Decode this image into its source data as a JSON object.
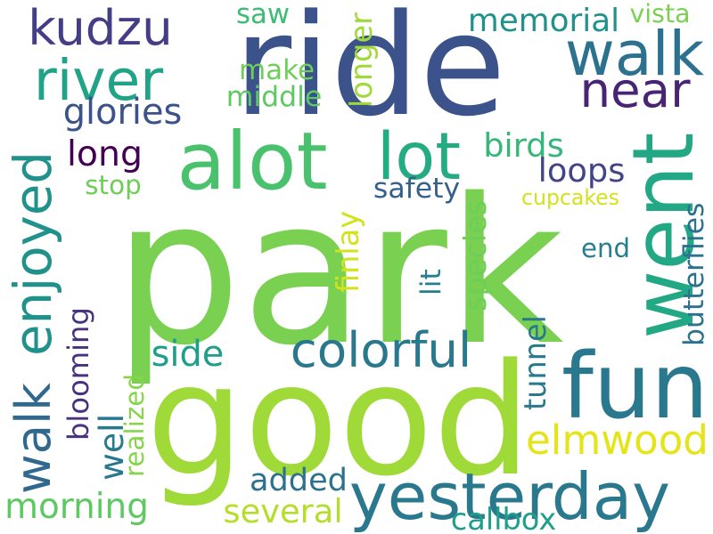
{
  "words": [
    {
      "id": "park",
      "text": "park",
      "color": "#7ad151",
      "orient": "h"
    },
    {
      "id": "ride",
      "text": "ride",
      "color": "#3b528b",
      "orient": "h"
    },
    {
      "id": "good",
      "text": "good",
      "color": "#a0da39",
      "orient": "h"
    },
    {
      "id": "alot",
      "text": "alot",
      "color": "#4ac16d",
      "orient": "h"
    },
    {
      "id": "went",
      "text": "went",
      "color": "#22a884",
      "orient": "v"
    },
    {
      "id": "fun",
      "text": "fun",
      "color": "#2a788e",
      "orient": "h"
    },
    {
      "id": "yesterday",
      "text": "yesterday",
      "color": "#2a788e",
      "orient": "h"
    },
    {
      "id": "walk",
      "text": "walk",
      "color": "#2c728e",
      "orient": "h"
    },
    {
      "id": "lot",
      "text": "lot",
      "color": "#25ab82",
      "orient": "h"
    },
    {
      "id": "river",
      "text": "river",
      "color": "#20a386",
      "orient": "h"
    },
    {
      "id": "near",
      "text": "near",
      "color": "#482475",
      "orient": "h"
    },
    {
      "id": "kudzu",
      "text": "kudzu",
      "color": "#433e85",
      "orient": "h"
    },
    {
      "id": "walk2",
      "text": "walk",
      "color": "#31688e",
      "orient": "v"
    },
    {
      "id": "enjoyed",
      "text": "enjoyed",
      "color": "#21918c",
      "orient": "v"
    },
    {
      "id": "colorful",
      "text": "colorful",
      "color": "#2a788e",
      "orient": "h"
    },
    {
      "id": "elmwood",
      "text": "elmwood",
      "color": "#e5e419",
      "orient": "h"
    },
    {
      "id": "morning",
      "text": "morning",
      "color": "#5ec962",
      "orient": "h"
    },
    {
      "id": "memorial",
      "text": "memorial",
      "color": "#21918c",
      "orient": "h"
    },
    {
      "id": "glories",
      "text": "glories",
      "color": "#3b528b",
      "orient": "h"
    },
    {
      "id": "birds",
      "text": "birds",
      "color": "#35b779",
      "orient": "h"
    },
    {
      "id": "loops",
      "text": "loops",
      "color": "#414487",
      "orient": "h"
    },
    {
      "id": "long",
      "text": "long",
      "color": "#440154",
      "orient": "h"
    },
    {
      "id": "butterflies",
      "text": "butterflies",
      "color": "#2c728e",
      "orient": "v"
    },
    {
      "id": "tunnel",
      "text": "tunnel",
      "color": "#2a788e",
      "orient": "v"
    },
    {
      "id": "species",
      "text": "species",
      "color": "#6ece58",
      "orient": "v"
    },
    {
      "id": "blooming",
      "text": "blooming",
      "color": "#46327e",
      "orient": "v"
    },
    {
      "id": "side",
      "text": "side",
      "color": "#1f9e89",
      "orient": "h"
    },
    {
      "id": "added",
      "text": "added",
      "color": "#2c728e",
      "orient": "h"
    },
    {
      "id": "several",
      "text": "several",
      "color": "#b5de2b",
      "orient": "h"
    },
    {
      "id": "callbox",
      "text": "callbox",
      "color": "#1f9e89",
      "orient": "h"
    },
    {
      "id": "longer",
      "text": "longer",
      "color": "#a0da39",
      "orient": "v"
    },
    {
      "id": "finlay",
      "text": "finlay",
      "color": "#d2e21b",
      "orient": "v"
    },
    {
      "id": "lit",
      "text": "lit",
      "color": "#277f8e",
      "orient": "v"
    },
    {
      "id": "well",
      "text": "well",
      "color": "#2a788e",
      "orient": "v"
    },
    {
      "id": "realized",
      "text": "realized",
      "color": "#86d549",
      "orient": "v"
    },
    {
      "id": "make",
      "text": "make",
      "color": "#6ece58",
      "orient": "h"
    },
    {
      "id": "middle",
      "text": "middle",
      "color": "#5ec962",
      "orient": "h"
    },
    {
      "id": "saw",
      "text": "saw",
      "color": "#3dbc74",
      "orient": "h"
    },
    {
      "id": "safety",
      "text": "safety",
      "color": "#355f8d",
      "orient": "h"
    },
    {
      "id": "stop",
      "text": "stop",
      "color": "#6ece58",
      "orient": "h"
    },
    {
      "id": "cupcakes",
      "text": "cupcakes",
      "color": "#d2e21b",
      "orient": "h"
    },
    {
      "id": "end",
      "text": "end",
      "color": "#277f8e",
      "orient": "h"
    },
    {
      "id": "vista",
      "text": "vista",
      "color": "#7ad151",
      "orient": "h"
    }
  ]
}
